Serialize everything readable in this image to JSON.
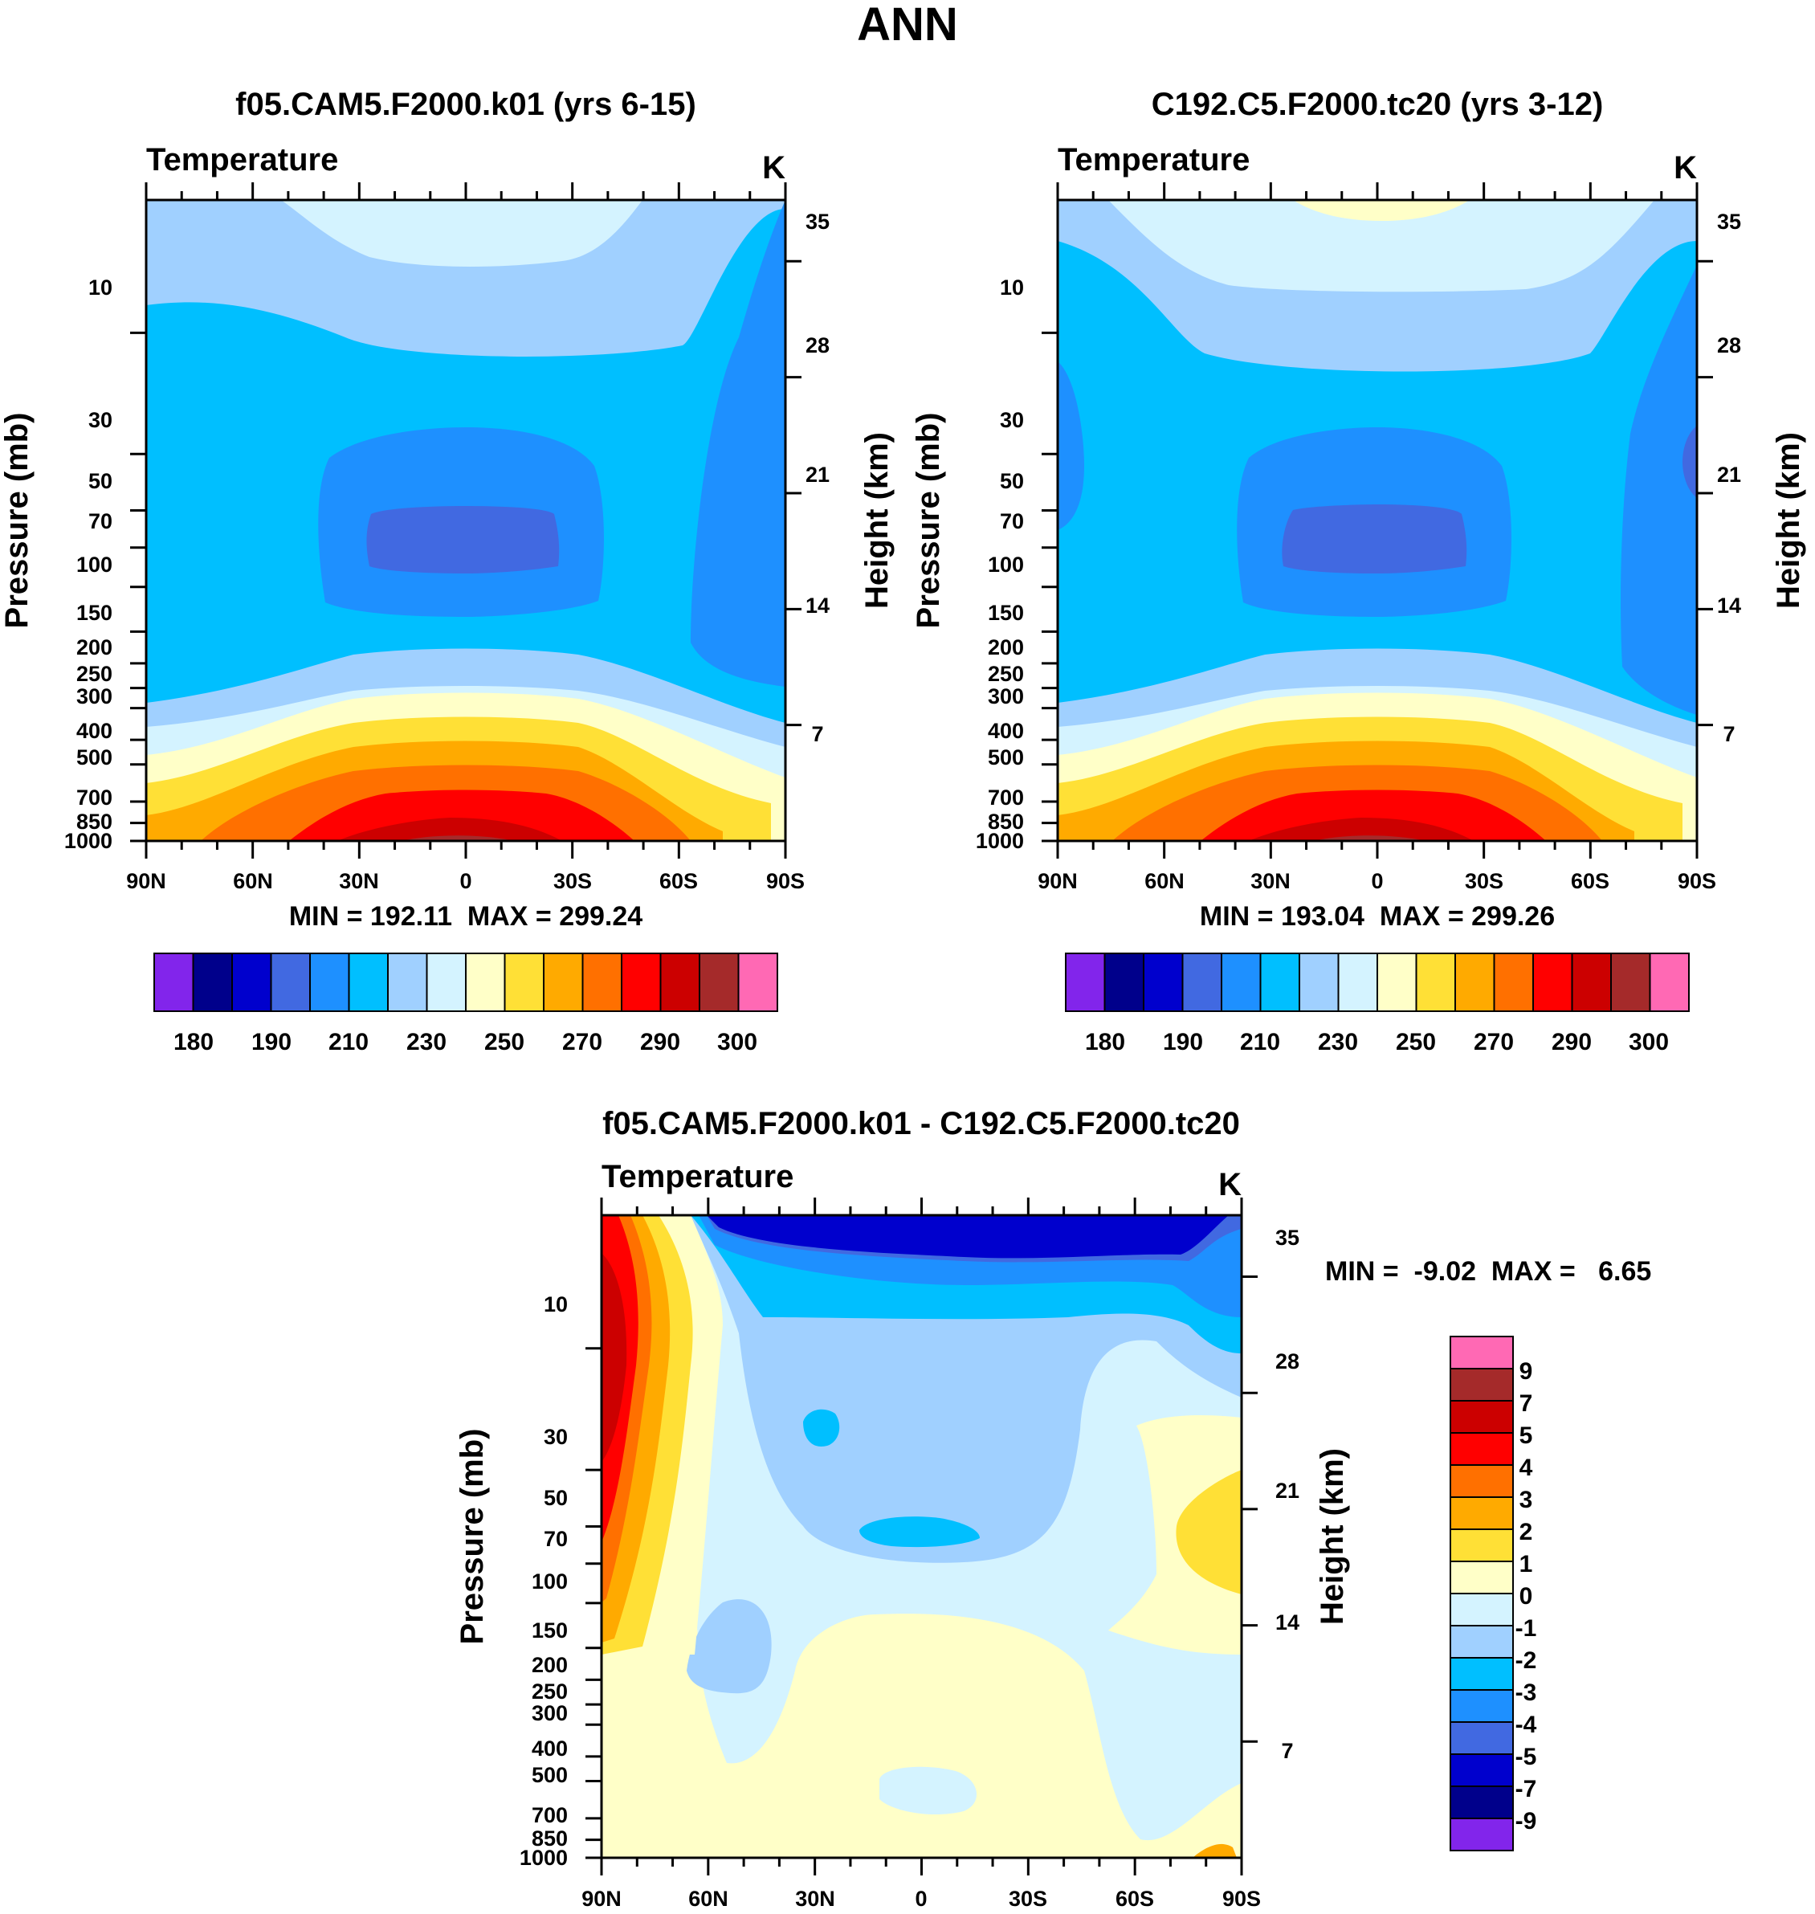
{
  "figure_title": "ANN",
  "chart_data": [
    {
      "type": "heatmap",
      "title": "f05.CAM5.F2000.k01 (yrs 6-15)",
      "left_label": "Temperature",
      "right_label": "K",
      "xlabel": "",
      "ylabel": "Pressure (mb)",
      "y2label": "Height (km)",
      "x_ticks": [
        "90N",
        "60N",
        "30N",
        "0",
        "30S",
        "60S",
        "90S"
      ],
      "y_ticks": [
        "10",
        "30",
        "50",
        "70",
        "100",
        "150",
        "200",
        "250",
        "300",
        "400",
        "500",
        "700",
        "850",
        "1000"
      ],
      "y2_ticks": [
        "35",
        "28",
        "21",
        "14",
        "7"
      ],
      "stats": "MIN = 192.11  MAX = 299.24",
      "colorbar_labels": [
        "180",
        "190",
        "210",
        "230",
        "250",
        "270",
        "290",
        "300"
      ],
      "colors": [
        "#8225eb",
        "#00008b",
        "#0000cd",
        "#4169e1",
        "#1e90ff",
        "#00bfff",
        "#a0d0ff",
        "#d4f3ff",
        "#ffffc8",
        "#ffe036",
        "#ffaa00",
        "#ff7000",
        "#ff0000",
        "#cc0000",
        "#a52a2a",
        "#ff69b4"
      ]
    },
    {
      "type": "heatmap",
      "title": "C192.C5.F2000.tc20 (yrs 3-12)",
      "left_label": "Temperature",
      "right_label": "K",
      "xlabel": "",
      "ylabel": "Pressure (mb)",
      "y2label": "Height (km)",
      "x_ticks": [
        "90N",
        "60N",
        "30N",
        "0",
        "30S",
        "60S",
        "90S"
      ],
      "y_ticks": [
        "10",
        "30",
        "50",
        "70",
        "100",
        "150",
        "200",
        "250",
        "300",
        "400",
        "500",
        "700",
        "850",
        "1000"
      ],
      "y2_ticks": [
        "35",
        "28",
        "21",
        "14",
        "7"
      ],
      "stats": "MIN = 193.04  MAX = 299.26",
      "colorbar_labels": [
        "180",
        "190",
        "210",
        "230",
        "250",
        "270",
        "290",
        "300"
      ],
      "colors": [
        "#8225eb",
        "#00008b",
        "#0000cd",
        "#4169e1",
        "#1e90ff",
        "#00bfff",
        "#a0d0ff",
        "#d4f3ff",
        "#ffffc8",
        "#ffe036",
        "#ffaa00",
        "#ff7000",
        "#ff0000",
        "#cc0000",
        "#a52a2a",
        "#ff69b4"
      ]
    },
    {
      "type": "heatmap",
      "title": "f05.CAM5.F2000.k01 - C192.C5.F2000.tc20",
      "left_label": "Temperature",
      "right_label": "K",
      "xlabel": "",
      "ylabel": "Pressure (mb)",
      "y2label": "Height (km)",
      "x_ticks": [
        "90N",
        "60N",
        "30N",
        "0",
        "30S",
        "60S",
        "90S"
      ],
      "y_ticks": [
        "10",
        "30",
        "50",
        "70",
        "100",
        "150",
        "200",
        "250",
        "300",
        "400",
        "500",
        "700",
        "850",
        "1000"
      ],
      "y2_ticks": [
        "35",
        "28",
        "21",
        "14",
        "7"
      ],
      "stats": "MIN =  -9.02  MAX =   6.65",
      "colorbar_labels": [
        "9",
        "7",
        "5",
        "4",
        "3",
        "2",
        "1",
        "0",
        "-1",
        "-2",
        "-3",
        "-4",
        "-5",
        "-7",
        "-9"
      ],
      "colors": [
        "#ff69b4",
        "#a52a2a",
        "#cc0000",
        "#ff0000",
        "#ff7000",
        "#ffaa00",
        "#ffe036",
        "#ffffc8",
        "#d4f3ff",
        "#a0d0ff",
        "#00bfff",
        "#1e90ff",
        "#4169e1",
        "#0000cd",
        "#00008b",
        "#8225eb"
      ]
    }
  ]
}
